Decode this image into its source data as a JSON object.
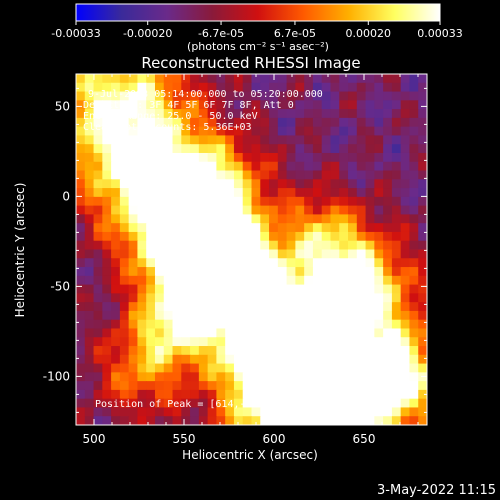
{
  "chart_data": {
    "type": "heatmap",
    "title": "Reconstructed RHESSI Image",
    "xlabel": "Heliocentric X (arcsec)",
    "ylabel": "Heliocentric Y (arcsec)",
    "xlim": [
      490,
      685
    ],
    "ylim": [
      -127,
      68
    ],
    "x_ticks": [
      500,
      550,
      600,
      650
    ],
    "y_ticks": [
      50,
      0,
      -50,
      -100
    ],
    "colorbar": {
      "range": [
        -0.00033,
        0.00033
      ],
      "tick_values": [
        -0.00033,
        -0.0002,
        -6.7e-05,
        6.7e-05,
        0.0002,
        0.00033
      ],
      "tick_labels": [
        "-0.00033",
        "-0.00020",
        "-6.7e-05",
        "6.7e-05",
        "0.00020",
        "0.00033"
      ],
      "units_label": "(photons cm⁻² s⁻¹ asec⁻²)",
      "colors": [
        "#0000ff",
        "#3a2a9a",
        "#6a2a8a",
        "#8a1a3a",
        "#d01010",
        "#ff5a00",
        "#ffb000",
        "#ffff60",
        "#ffffff"
      ]
    },
    "annotations": {
      "time_range": "9-Jul-2003 05:14:00.000 to 05:20:00.000",
      "detectors": "Detectors: 3F 4F 5F 6F 7F 8F, Att 0",
      "energy": "Energy Range: 25.0 - 50.0 keV",
      "method": "Clean    Total counts: 5.36E+03",
      "peak": "Position of Peak = [614,-128]"
    },
    "peak": {
      "x": 614,
      "y": -128
    },
    "footer_date": "3-May-2022 11:15"
  }
}
